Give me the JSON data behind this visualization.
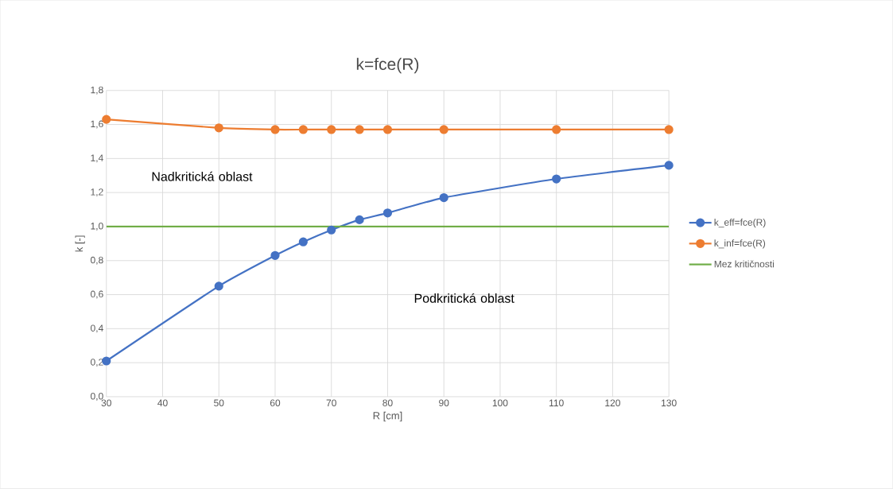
{
  "chart_data": {
    "type": "line",
    "title": "k=fce(R)",
    "xlabel": "R [cm]",
    "ylabel": "k [-]",
    "xlim": [
      30,
      130
    ],
    "xticks": [
      30,
      40,
      50,
      60,
      70,
      80,
      90,
      100,
      110,
      120,
      130
    ],
    "ylim": [
      0,
      1.8
    ],
    "yticks": [
      {
        "value": 0,
        "label": "0,0"
      },
      {
        "value": 0.2,
        "label": "0,2"
      },
      {
        "value": 0.4,
        "label": "0,4"
      },
      {
        "value": 0.6,
        "label": "0,6"
      },
      {
        "value": 0.8,
        "label": "0,8"
      },
      {
        "value": 1.0,
        "label": "1,0"
      },
      {
        "value": 1.2,
        "label": "1,2"
      },
      {
        "value": 1.4,
        "label": "1,4"
      },
      {
        "value": 1.6,
        "label": "1,6"
      },
      {
        "value": 1.8,
        "label": "1,8"
      }
    ],
    "grid": true,
    "legend": "right",
    "marker": "circle",
    "series": [
      {
        "name": "k_eff=fce(R)",
        "color": "#4472c4",
        "x": [
          30,
          50,
          60,
          65,
          70,
          75,
          80,
          90,
          110,
          130
        ],
        "values": [
          0.21,
          0.65,
          0.83,
          0.91,
          0.98,
          1.04,
          1.08,
          1.17,
          1.28,
          1.36
        ]
      },
      {
        "name": "k_inf=fce(R)",
        "color": "#ed7d31",
        "x": [
          30,
          50,
          60,
          65,
          70,
          75,
          80,
          90,
          110,
          130
        ],
        "values": [
          1.63,
          1.58,
          1.57,
          1.57,
          1.57,
          1.57,
          1.57,
          1.57,
          1.57,
          1.57
        ]
      },
      {
        "name": "Mez kritičnosti",
        "color": "#70ad47",
        "x": [
          30,
          130
        ],
        "values": [
          1.0,
          1.0
        ],
        "marker": "none"
      }
    ],
    "annotations": [
      "Nadkritická oblast",
      "Podkritická oblast"
    ]
  }
}
